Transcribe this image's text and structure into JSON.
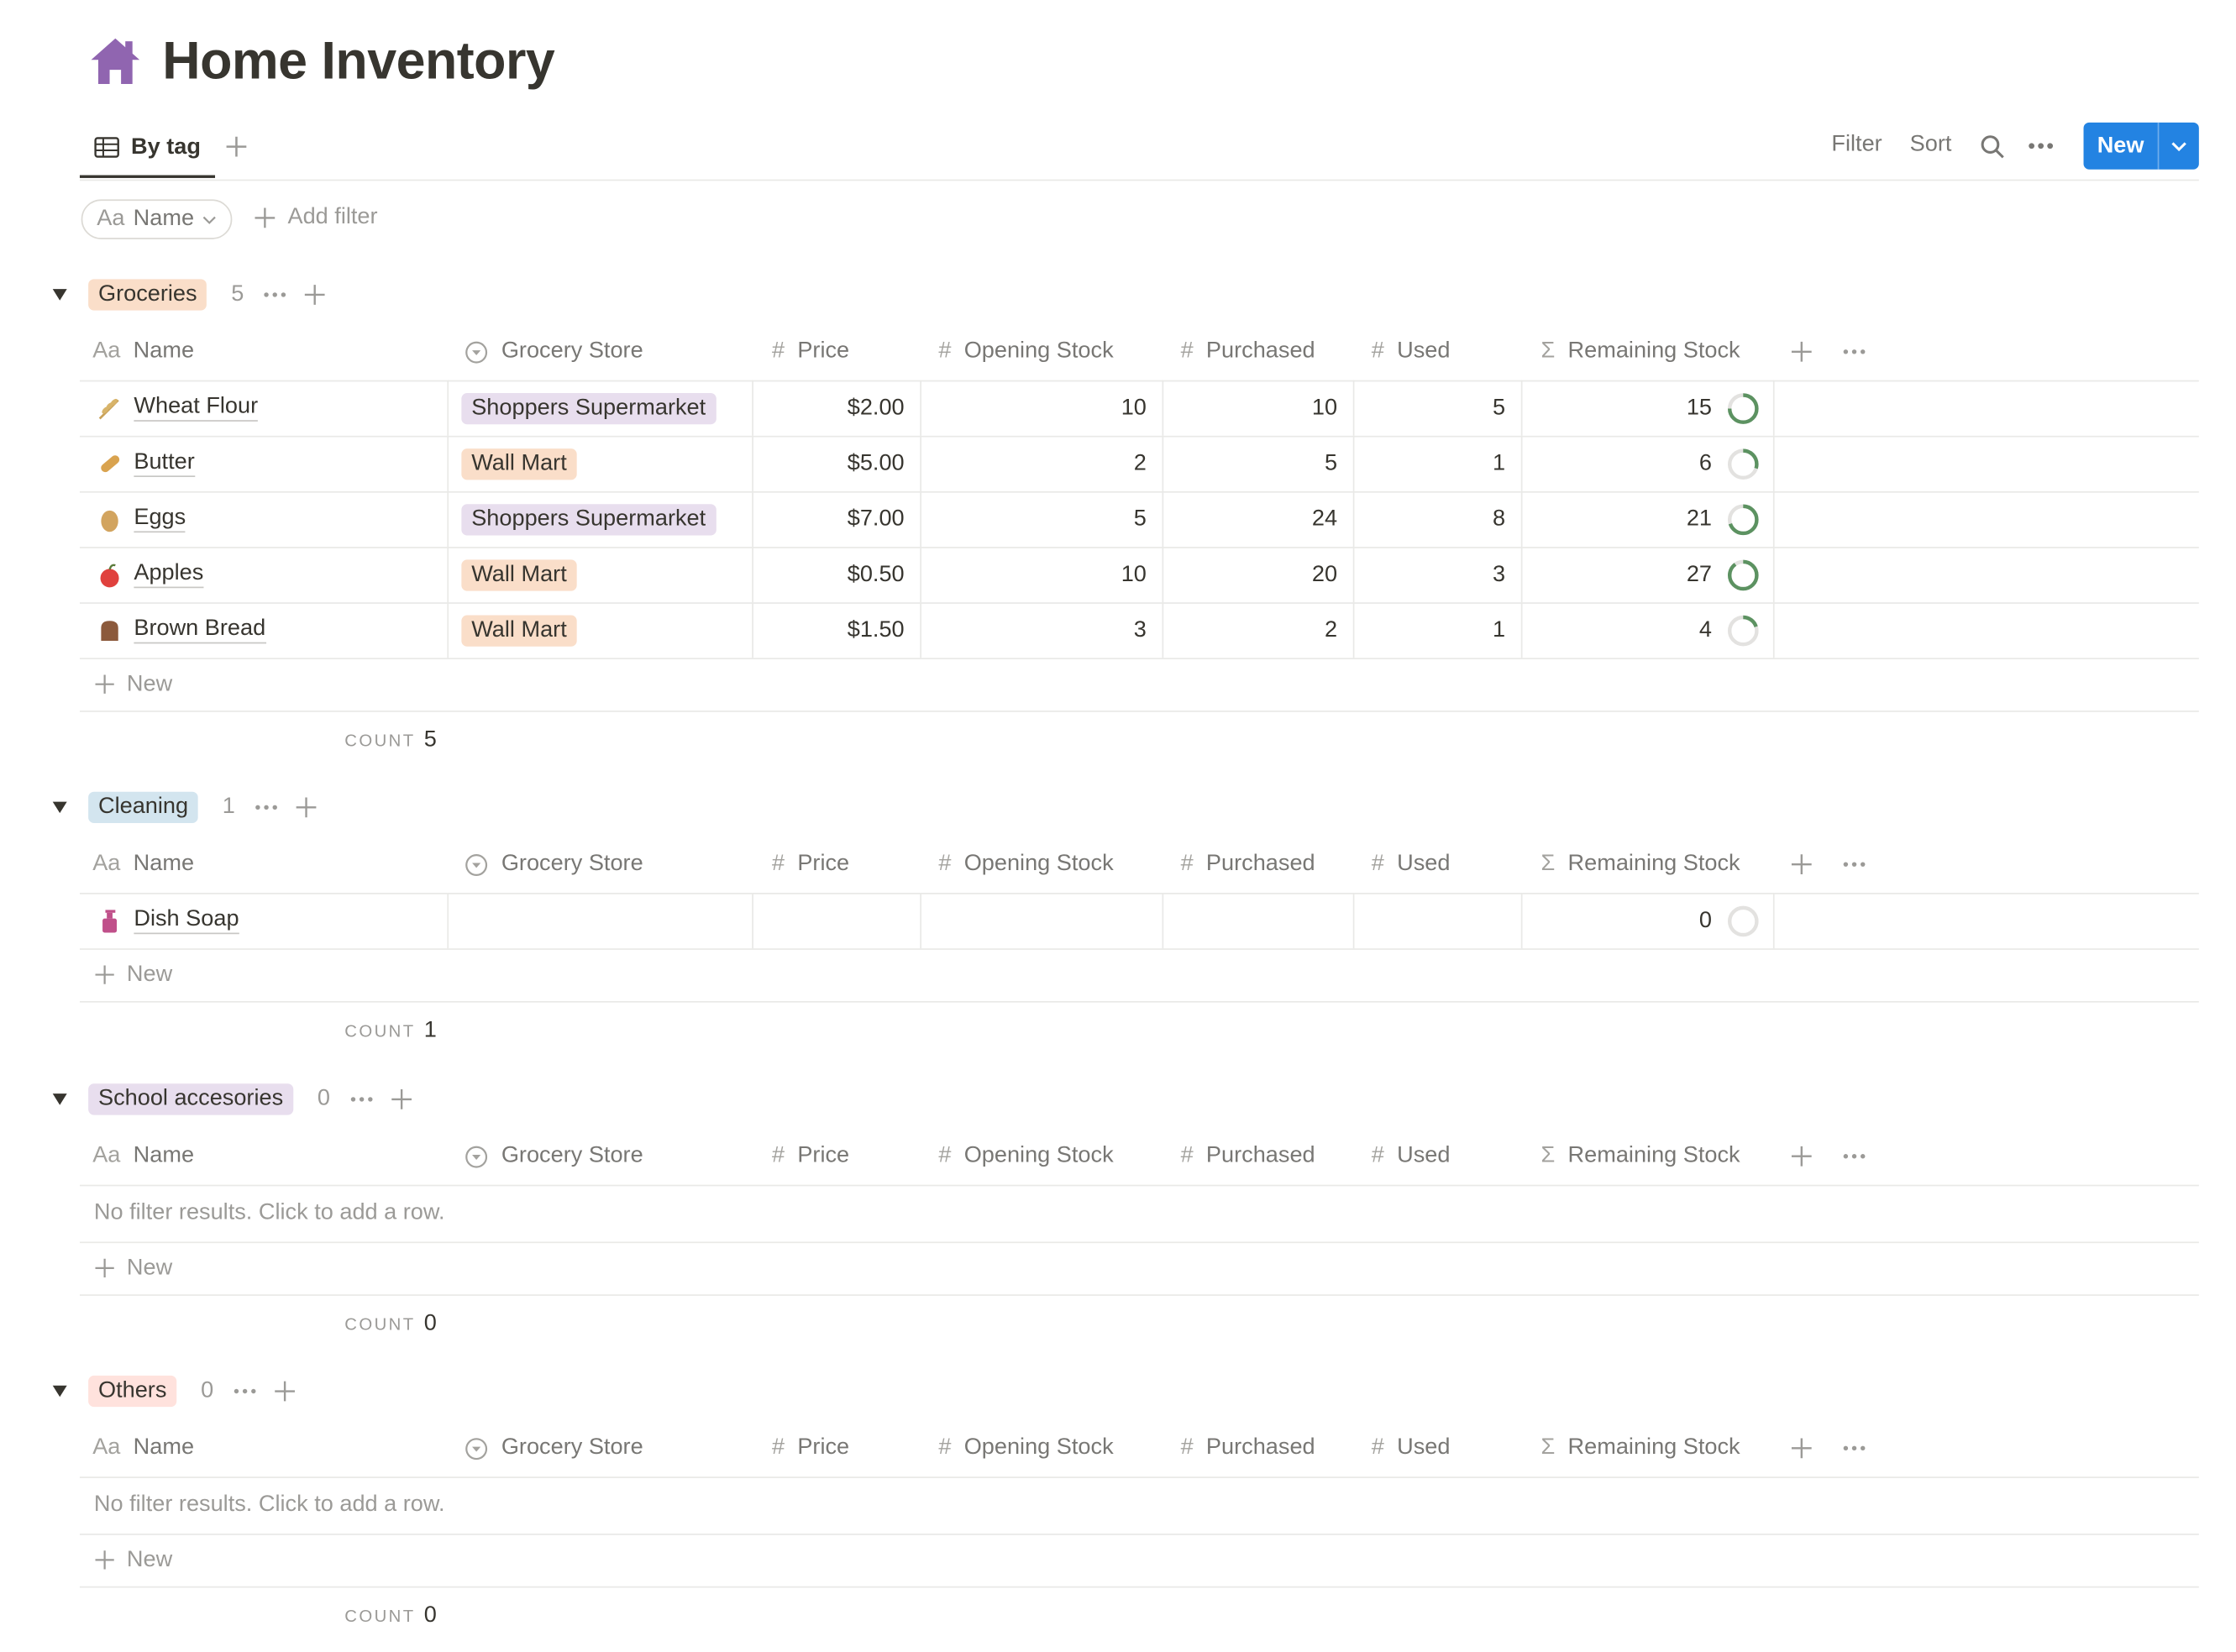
{
  "page": {
    "title": "Home Inventory",
    "icon": "house-icon",
    "accent": "#2383e2"
  },
  "view": {
    "tab_label": "By tag",
    "filter_label": "Filter",
    "sort_label": "Sort",
    "new_label": "New"
  },
  "filterbar": {
    "name_prefix": "Aa",
    "name_label": "Name",
    "add_filter_label": "Add filter"
  },
  "columns": [
    {
      "icon": "Aa",
      "label": "Name"
    },
    {
      "icon": "select-icon",
      "label": "Grocery Store"
    },
    {
      "icon": "#",
      "label": "Price"
    },
    {
      "icon": "#",
      "label": "Opening Stock"
    },
    {
      "icon": "#",
      "label": "Purchased"
    },
    {
      "icon": "#",
      "label": "Used"
    },
    {
      "icon": "Σ",
      "label": "Remaining Stock"
    }
  ],
  "labels": {
    "new_row": "New",
    "count": "COUNT",
    "empty": "No filter results. Click to add a row."
  },
  "groups": [
    {
      "name": "Groceries",
      "count": "5",
      "tag_color": "#fadec9",
      "rows": [
        {
          "icon": "wheat-icon",
          "name": "Wheat Flour",
          "store": "Shoppers Supermarket",
          "store_color": "#e8deee",
          "price": "$2.00",
          "opening": "10",
          "purchased": "10",
          "used": "5",
          "remaining": "15",
          "ring": 0.75
        },
        {
          "icon": "bread-icon",
          "name": "Butter",
          "store": "Wall Mart",
          "store_color": "#fadec9",
          "price": "$5.00",
          "opening": "2",
          "purchased": "5",
          "used": "1",
          "remaining": "6",
          "ring": 0.3
        },
        {
          "icon": "egg-icon",
          "name": "Eggs",
          "store": "Shoppers Supermarket",
          "store_color": "#e8deee",
          "price": "$7.00",
          "opening": "5",
          "purchased": "24",
          "used": "8",
          "remaining": "21",
          "ring": 0.7
        },
        {
          "icon": "apple-icon",
          "name": "Apples",
          "store": "Wall Mart",
          "store_color": "#fadec9",
          "price": "$0.50",
          "opening": "10",
          "purchased": "20",
          "used": "3",
          "remaining": "27",
          "ring": 0.9
        },
        {
          "icon": "bread-loaf-icon",
          "name": "Brown Bread",
          "store": "Wall Mart",
          "store_color": "#fadec9",
          "price": "$1.50",
          "opening": "3",
          "purchased": "2",
          "used": "1",
          "remaining": "4",
          "ring": 0.2
        }
      ]
    },
    {
      "name": "Cleaning",
      "count": "1",
      "tag_color": "#d3e5ef",
      "rows": [
        {
          "icon": "soap-icon",
          "name": "Dish Soap",
          "store": "",
          "store_color": "",
          "price": "",
          "opening": "",
          "purchased": "",
          "used": "",
          "remaining": "0",
          "ring": 0
        }
      ]
    },
    {
      "name": "School accesories",
      "count": "0",
      "tag_color": "#e8deee",
      "rows": []
    },
    {
      "name": "Others",
      "count": "0",
      "tag_color": "#ffe2dd",
      "rows": []
    }
  ]
}
